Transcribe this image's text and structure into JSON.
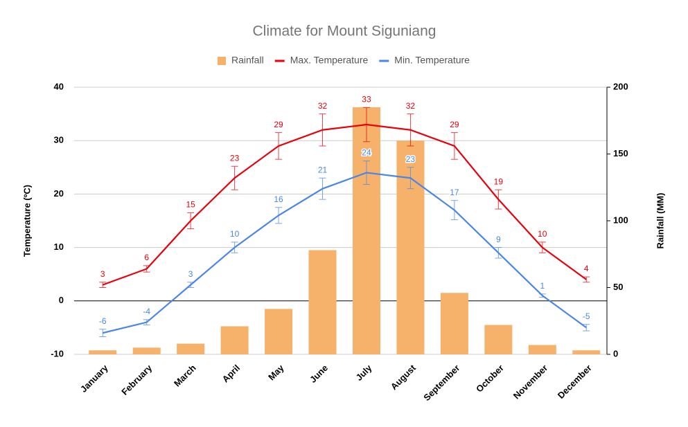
{
  "chart_data": {
    "type": "combo",
    "title": "Climate for Mount Siguniang",
    "y_label": "Temperature (ºC)",
    "y2_label": "Rainfall (MM)",
    "categories": [
      "January",
      "February",
      "March",
      "April",
      "May",
      "June",
      "July",
      "August",
      "September",
      "October",
      "November",
      "December"
    ],
    "series": [
      {
        "name": "Rainfall",
        "type": "bar",
        "axis": "y2",
        "color": "#f6b26b",
        "values": [
          3,
          5,
          8,
          21,
          34,
          78,
          185,
          160,
          46,
          22,
          7,
          3
        ]
      },
      {
        "name": "Max. Temperature",
        "type": "line",
        "color": "#e8000b",
        "values": [
          3,
          6,
          15,
          23,
          29,
          32,
          33,
          32,
          29,
          19,
          10,
          4
        ],
        "errors": [
          0.5,
          0.6,
          1.5,
          2.2,
          2.5,
          3,
          3.2,
          3,
          2.5,
          1.8,
          1,
          0.5
        ]
      },
      {
        "name": "Min. Temperature",
        "type": "line",
        "color": "#4a86e8",
        "values": [
          -6,
          -4,
          3,
          10,
          16,
          21,
          24,
          23,
          17,
          9,
          1,
          -5
        ],
        "errors": [
          0.7,
          0.5,
          0.5,
          1,
          1.5,
          2,
          2.2,
          2,
          1.8,
          1,
          0.3,
          0.6
        ]
      }
    ],
    "ylim": [
      -10,
      40
    ],
    "yticks": [
      -10,
      0,
      10,
      20,
      30,
      40
    ],
    "y2lim": [
      0,
      200
    ],
    "y2ticks": [
      0,
      50,
      100,
      150,
      200
    ],
    "grid": true,
    "legend": "top"
  }
}
